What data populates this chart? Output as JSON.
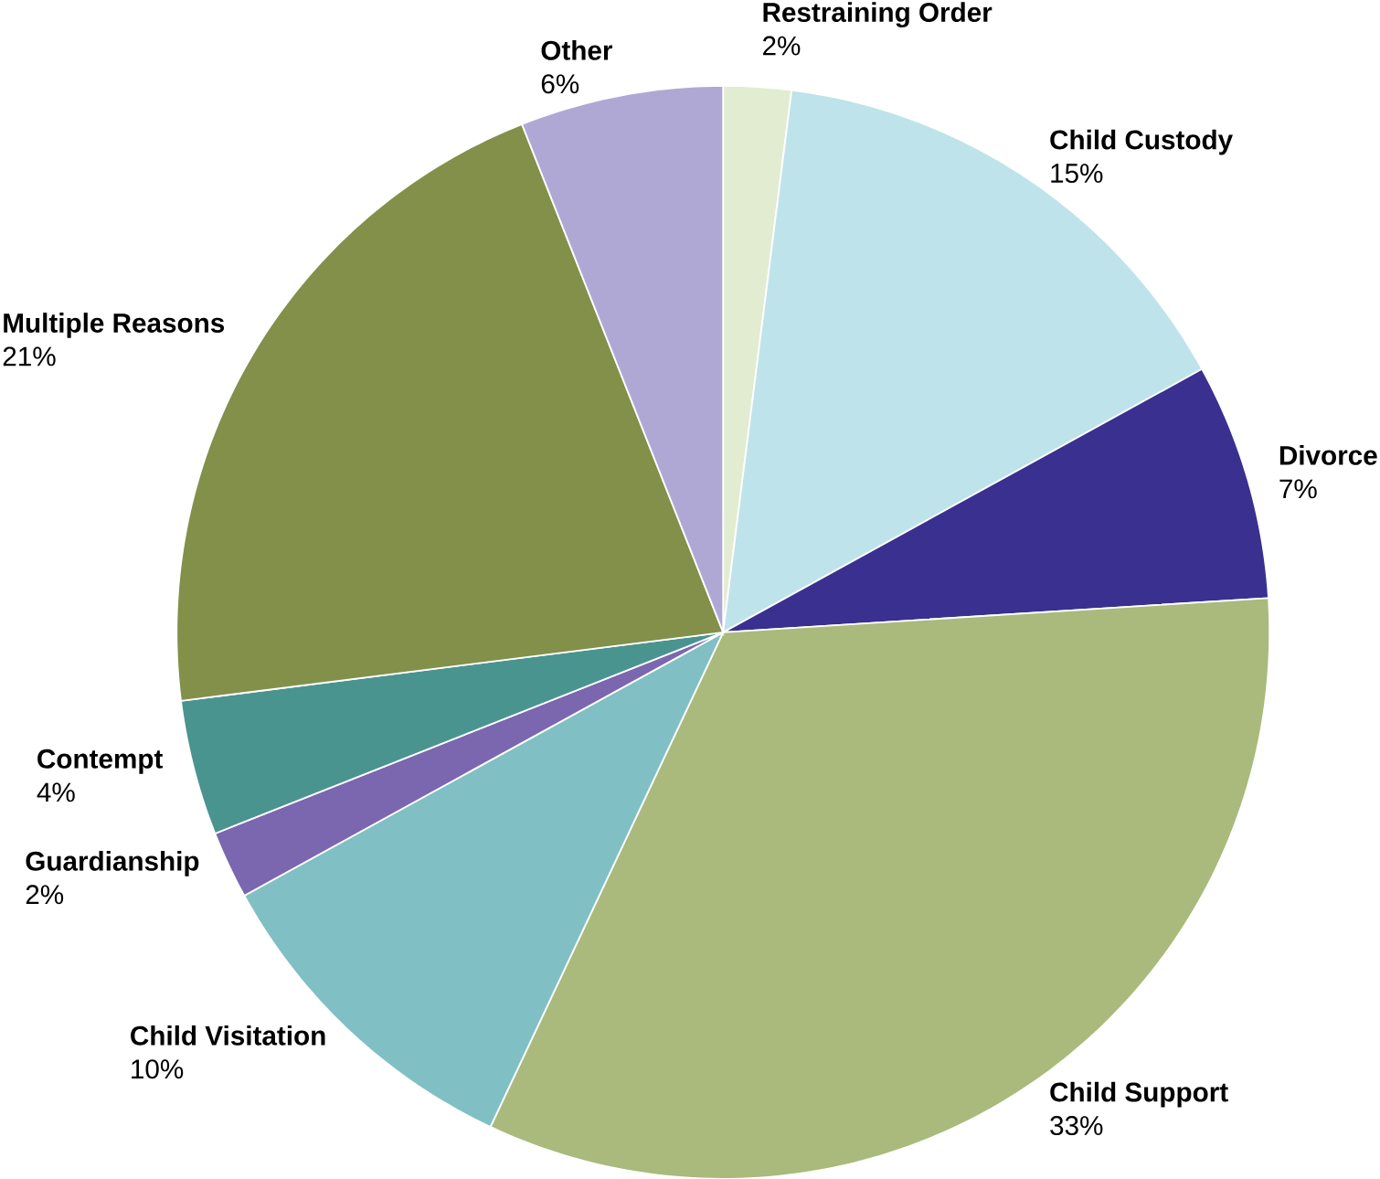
{
  "chart_data": {
    "type": "pie",
    "categories": [
      "Restraining Order",
      "Child Custody",
      "Divorce",
      "Child Support",
      "Child Visitation",
      "Guardianship",
      "Contempt",
      "Multiple Reasons",
      "Other"
    ],
    "values": [
      2,
      15,
      7,
      33,
      10,
      2,
      4,
      21,
      6
    ],
    "value_labels": [
      "2%",
      "15%",
      "7%",
      "33%",
      "10%",
      "2%",
      "4%",
      "21%",
      "6%"
    ],
    "colors": [
      "#e2ecd0",
      "#bfe3ea",
      "#3a3090",
      "#a9ba7c",
      "#80c0c4",
      "#7b66b0",
      "#4a9490",
      "#82904a",
      "#b0a8d4"
    ]
  }
}
